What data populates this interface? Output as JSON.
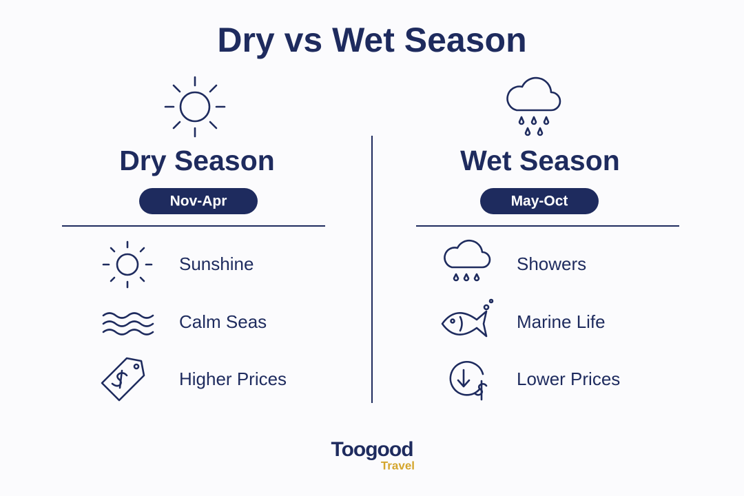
{
  "title": "Dry vs Wet Season",
  "columns": [
    {
      "heading": "Dry Season",
      "months": "Nov-Apr",
      "items": [
        "Sunshine",
        "Calm Seas",
        "Higher Prices"
      ]
    },
    {
      "heading": "Wet Season",
      "months": "May-Oct",
      "items": [
        "Showers",
        "Marine Life",
        "Lower Prices"
      ]
    }
  ],
  "logo": {
    "brand": "Toogood",
    "sub": "Travel"
  }
}
